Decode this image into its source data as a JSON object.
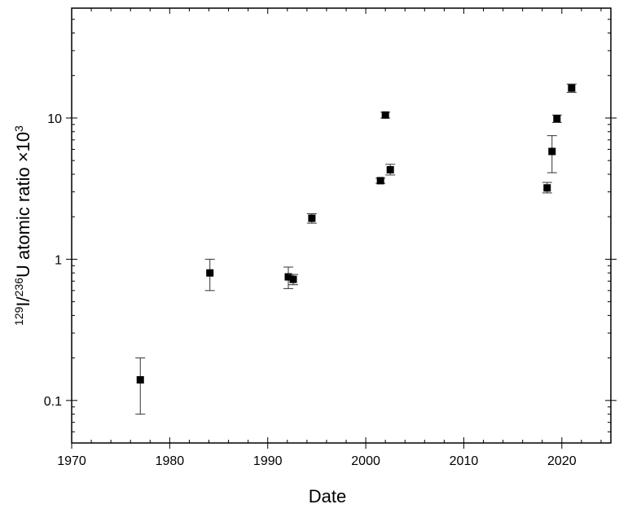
{
  "chart_data": {
    "type": "scatter",
    "title": "",
    "xlabel": "Date",
    "ylabel": {
      "sup1": "129",
      "part1": "I/",
      "sup2": "236",
      "part2": "U atomic ratio ×10",
      "sup3": "3"
    },
    "xlim": [
      1970,
      2025
    ],
    "ylim": [
      0.05,
      60
    ],
    "y_scale": "log",
    "grid": false,
    "legend": "none",
    "x_ticks": [
      1970,
      1980,
      1990,
      2000,
      2010,
      2020
    ],
    "x_tick_labels": [
      "1970",
      "1980",
      "1990",
      "2000",
      "2010",
      "2020"
    ],
    "y_ticks": [
      0.1,
      1,
      10
    ],
    "y_tick_labels": [
      "0.1",
      "1",
      "10"
    ],
    "marker_color": "#000000",
    "points": [
      {
        "x": 1977.0,
        "y": 0.14,
        "err_low": 0.08,
        "err_high": 0.2
      },
      {
        "x": 1984.1,
        "y": 0.8,
        "err_low": 0.6,
        "err_high": 1.0
      },
      {
        "x": 1992.1,
        "y": 0.75,
        "err_low": 0.62,
        "err_high": 0.88
      },
      {
        "x": 1992.6,
        "y": 0.72,
        "err_low": 0.66,
        "err_high": 0.78
      },
      {
        "x": 1994.5,
        "y": 1.95,
        "err_low": 1.8,
        "err_high": 2.1
      },
      {
        "x": 2001.5,
        "y": 3.6,
        "err_low": 3.45,
        "err_high": 3.75
      },
      {
        "x": 2002.0,
        "y": 10.5,
        "err_low": 10.0,
        "err_high": 11.0
      },
      {
        "x": 2002.5,
        "y": 4.3,
        "err_low": 3.95,
        "err_high": 4.7
      },
      {
        "x": 2018.5,
        "y": 3.2,
        "err_low": 2.95,
        "err_high": 3.5
      },
      {
        "x": 2019.0,
        "y": 5.8,
        "err_low": 4.1,
        "err_high": 7.5
      },
      {
        "x": 2019.5,
        "y": 9.9,
        "err_low": 9.3,
        "err_high": 10.5
      },
      {
        "x": 2021.0,
        "y": 16.3,
        "err_low": 15.2,
        "err_high": 17.4
      }
    ]
  }
}
